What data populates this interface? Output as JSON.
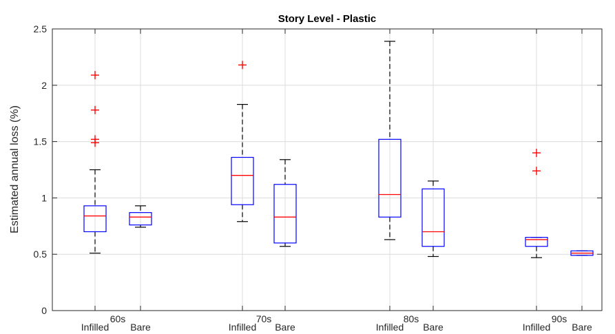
{
  "chart_data": {
    "type": "boxplot",
    "title": "Story Level - Plastic",
    "ylabel": "Estimated annual loss (%)",
    "xlabel": "",
    "ylim": [
      0,
      2.5
    ],
    "yticks": [
      "0",
      "0.5",
      "1",
      "1.5",
      "2",
      "2.5"
    ],
    "grid": true,
    "groups": [
      "60s",
      "70s",
      "80s",
      "90s"
    ],
    "subcategories": [
      "Infilled",
      "Bare"
    ],
    "colors": {
      "box": "#0000ff",
      "median": "#ff0000",
      "outlier": "#ff0000",
      "whisker": "#000000"
    },
    "boxes": [
      {
        "group": "60s",
        "label": "Infilled",
        "whisker_low": 0.51,
        "q1": 0.7,
        "median": 0.84,
        "q3": 0.93,
        "whisker_high": 1.25,
        "outliers": [
          2.09,
          1.78,
          1.52,
          1.49
        ]
      },
      {
        "group": "60s",
        "label": "Bare",
        "whisker_low": 0.74,
        "q1": 0.76,
        "median": 0.83,
        "q3": 0.87,
        "whisker_high": 0.93,
        "outliers": []
      },
      {
        "group": "70s",
        "label": "Infilled",
        "whisker_low": 0.79,
        "q1": 0.94,
        "median": 1.2,
        "q3": 1.36,
        "whisker_high": 1.83,
        "outliers": [
          2.18
        ]
      },
      {
        "group": "70s",
        "label": "Bare",
        "whisker_low": 0.57,
        "q1": 0.6,
        "median": 0.83,
        "q3": 1.12,
        "whisker_high": 1.34,
        "outliers": []
      },
      {
        "group": "80s",
        "label": "Infilled",
        "whisker_low": 0.63,
        "q1": 0.83,
        "median": 1.03,
        "q3": 1.52,
        "whisker_high": 2.39,
        "outliers": []
      },
      {
        "group": "80s",
        "label": "Bare",
        "whisker_low": 0.48,
        "q1": 0.57,
        "median": 0.7,
        "q3": 1.08,
        "whisker_high": 1.15,
        "outliers": []
      },
      {
        "group": "90s",
        "label": "Infilled",
        "whisker_low": 0.47,
        "q1": 0.57,
        "median": 0.63,
        "q3": 0.65,
        "whisker_high": 0.65,
        "outliers": [
          1.4,
          1.24
        ]
      },
      {
        "group": "90s",
        "label": "Bare",
        "whisker_low": 0.49,
        "q1": 0.49,
        "median": 0.51,
        "q3": 0.53,
        "whisker_high": 0.53,
        "outliers": []
      }
    ]
  }
}
